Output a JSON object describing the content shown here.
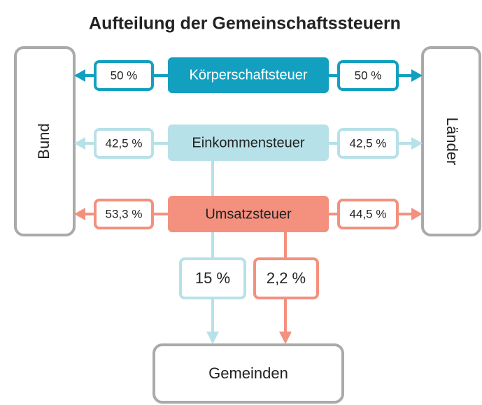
{
  "title": "Aufteilung der Gemeinschaftssteuern",
  "nodes": {
    "bund": "Bund",
    "laender": "Länder",
    "gemeinden": "Gemeinden"
  },
  "taxes": [
    {
      "name": "Körperschaftsteuer",
      "bund": "50 %",
      "laender": "50 %"
    },
    {
      "name": "Einkommensteuer",
      "bund": "42,5 %",
      "laender": "42,5 %",
      "gemeinden": "15 %"
    },
    {
      "name": "Umsatzsteuer",
      "bund": "53,3 %",
      "laender": "44,5 %",
      "gemeinden": "2,2 %"
    }
  ]
}
